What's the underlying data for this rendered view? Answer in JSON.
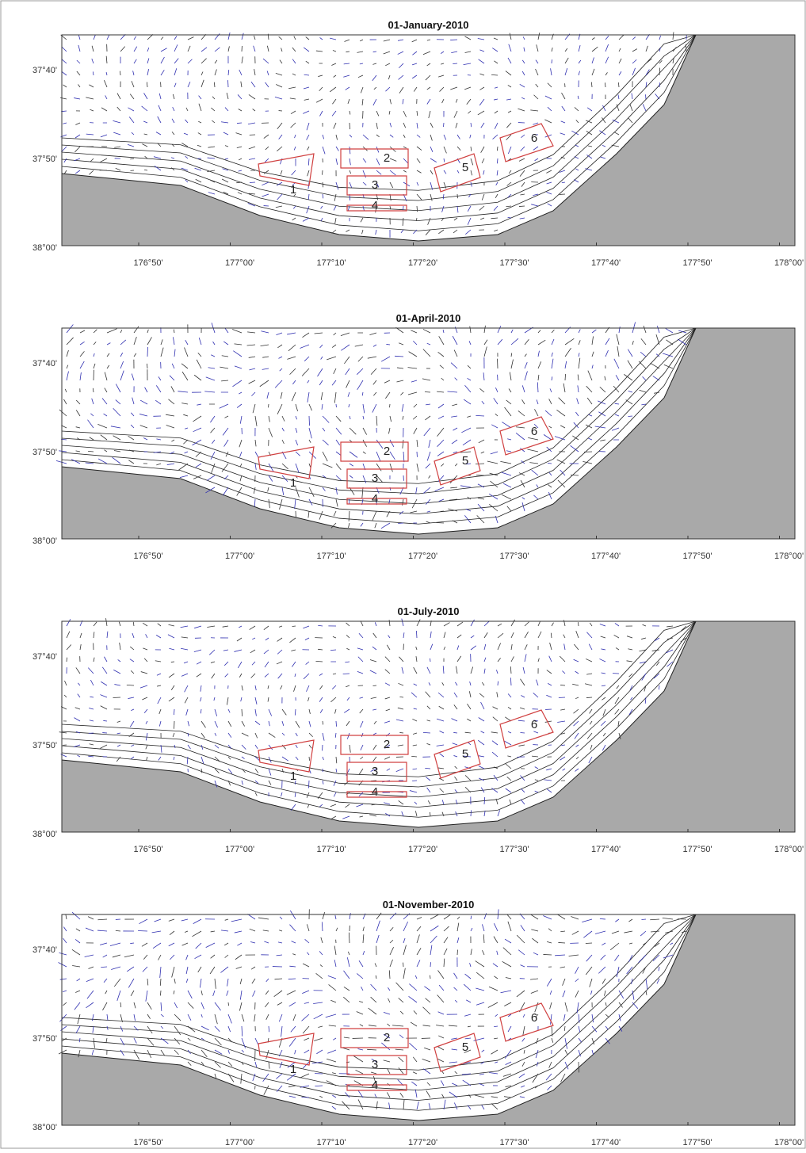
{
  "panels": [
    {
      "title": "01-January-2010"
    },
    {
      "title": "01-April-2010"
    },
    {
      "title": "01-July-2010"
    },
    {
      "title": "01-November-2010"
    }
  ],
  "x_ticks": [
    "176°50'",
    "177°00'",
    "177°10'",
    "177°20'",
    "177°30'",
    "177°40'",
    "177°50'",
    "178°00'"
  ],
  "y_ticks": [
    "37°40'",
    "37°50'",
    "38°00'"
  ],
  "regions": [
    "1",
    "2",
    "3",
    "4",
    "5",
    "6"
  ]
}
